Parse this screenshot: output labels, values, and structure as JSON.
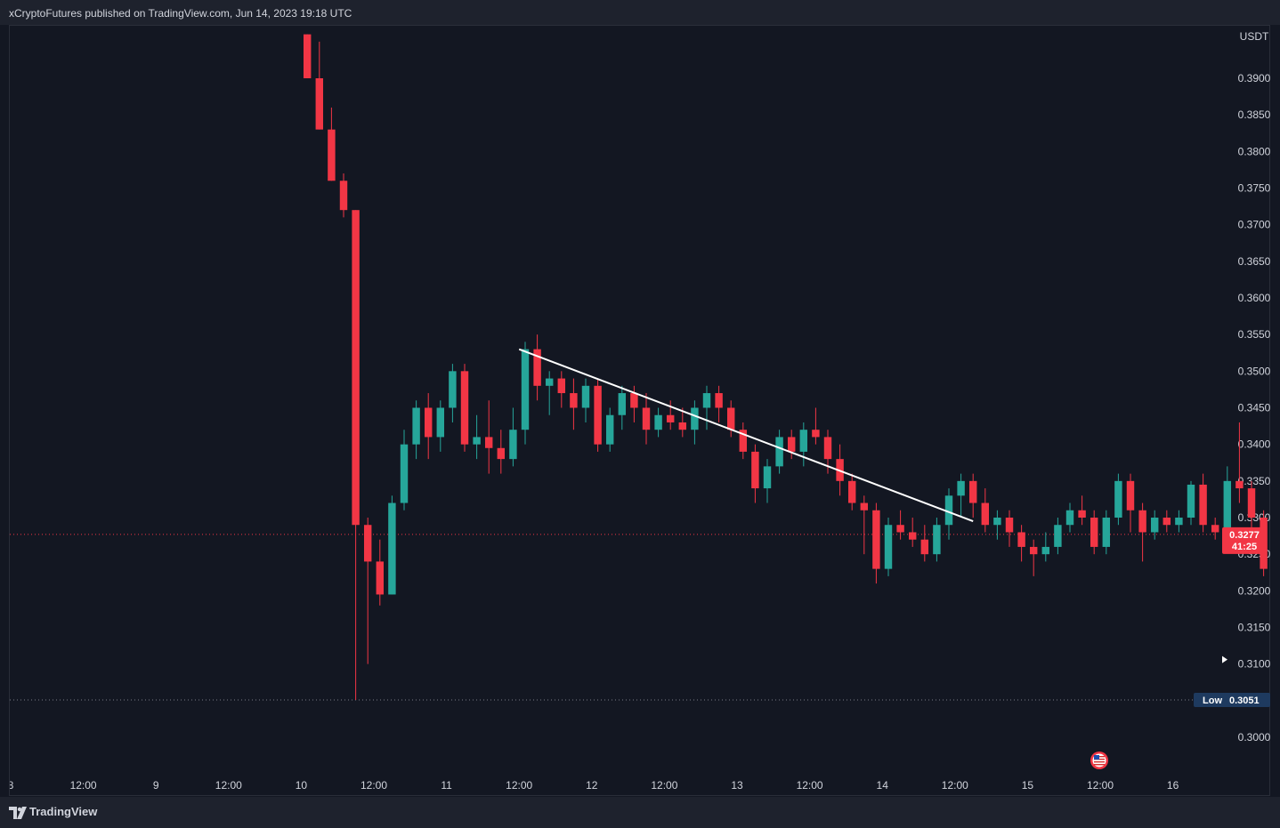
{
  "header": {
    "text": "xCryptoFutures published on TradingView.com, Jun 14, 2023 19:18 UTC"
  },
  "footer": {
    "brand": "TradingView"
  },
  "colors": {
    "background": "#131722",
    "up": "#26a69a",
    "down": "#f23645",
    "text": "#d1d4dc",
    "trendline": "#ffffff",
    "price_tag": "#f23645",
    "low_tag": "#1e3a5f"
  },
  "chart_data": {
    "type": "candlestick",
    "currency": "USDT",
    "y_ticks": [
      "0.3900",
      "0.3850",
      "0.3800",
      "0.3750",
      "0.3700",
      "0.3650",
      "0.3600",
      "0.3550",
      "0.3500",
      "0.3450",
      "0.3400",
      "0.3350",
      "0.3300",
      "0.3250",
      "0.3200",
      "0.3150",
      "0.3100",
      "0.3050",
      "0.3000"
    ],
    "ylim": [
      0.297,
      0.396
    ],
    "x_ticks": [
      "8",
      "12:00",
      "9",
      "12:00",
      "10",
      "12:00",
      "11",
      "12:00",
      "12",
      "12:00",
      "13",
      "12:00",
      "14",
      "12:00",
      "15",
      "12:00",
      "16"
    ],
    "candle_interval": "2h",
    "candles_start": "Jun 10 00:00",
    "candles": [
      [
        0.396,
        0.396,
        0.39,
        0.39
      ],
      [
        0.39,
        0.395,
        0.383,
        0.383
      ],
      [
        0.383,
        0.386,
        0.376,
        0.376
      ],
      [
        0.376,
        0.377,
        0.371,
        0.372
      ],
      [
        0.372,
        0.372,
        0.3051,
        0.329
      ],
      [
        0.329,
        0.33,
        0.31,
        0.324
      ],
      [
        0.324,
        0.327,
        0.318,
        0.3195
      ],
      [
        0.3195,
        0.333,
        0.3195,
        0.332
      ],
      [
        0.332,
        0.342,
        0.331,
        0.34
      ],
      [
        0.34,
        0.346,
        0.338,
        0.345
      ],
      [
        0.345,
        0.347,
        0.338,
        0.341
      ],
      [
        0.341,
        0.346,
        0.339,
        0.345
      ],
      [
        0.345,
        0.351,
        0.343,
        0.35
      ],
      [
        0.35,
        0.351,
        0.339,
        0.34
      ],
      [
        0.34,
        0.344,
        0.338,
        0.341
      ],
      [
        0.341,
        0.346,
        0.336,
        0.3395
      ],
      [
        0.3395,
        0.342,
        0.336,
        0.338
      ],
      [
        0.338,
        0.345,
        0.337,
        0.342
      ],
      [
        0.342,
        0.354,
        0.34,
        0.353
      ],
      [
        0.353,
        0.355,
        0.346,
        0.348
      ],
      [
        0.348,
        0.35,
        0.344,
        0.349
      ],
      [
        0.349,
        0.35,
        0.345,
        0.347
      ],
      [
        0.347,
        0.349,
        0.342,
        0.345
      ],
      [
        0.345,
        0.349,
        0.343,
        0.348
      ],
      [
        0.348,
        0.349,
        0.339,
        0.34
      ],
      [
        0.34,
        0.345,
        0.339,
        0.344
      ],
      [
        0.344,
        0.348,
        0.342,
        0.347
      ],
      [
        0.347,
        0.348,
        0.343,
        0.345
      ],
      [
        0.345,
        0.347,
        0.34,
        0.342
      ],
      [
        0.342,
        0.345,
        0.341,
        0.344
      ],
      [
        0.344,
        0.346,
        0.342,
        0.343
      ],
      [
        0.343,
        0.345,
        0.341,
        0.342
      ],
      [
        0.342,
        0.346,
        0.34,
        0.345
      ],
      [
        0.345,
        0.348,
        0.342,
        0.347
      ],
      [
        0.347,
        0.348,
        0.343,
        0.345
      ],
      [
        0.345,
        0.346,
        0.341,
        0.342
      ],
      [
        0.342,
        0.343,
        0.338,
        0.339
      ],
      [
        0.339,
        0.34,
        0.332,
        0.334
      ],
      [
        0.334,
        0.338,
        0.332,
        0.337
      ],
      [
        0.337,
        0.342,
        0.336,
        0.341
      ],
      [
        0.341,
        0.342,
        0.338,
        0.339
      ],
      [
        0.339,
        0.343,
        0.337,
        0.342
      ],
      [
        0.342,
        0.345,
        0.34,
        0.341
      ],
      [
        0.341,
        0.342,
        0.336,
        0.338
      ],
      [
        0.338,
        0.34,
        0.333,
        0.335
      ],
      [
        0.335,
        0.336,
        0.331,
        0.332
      ],
      [
        0.332,
        0.333,
        0.325,
        0.331
      ],
      [
        0.331,
        0.332,
        0.321,
        0.323
      ],
      [
        0.323,
        0.33,
        0.322,
        0.329
      ],
      [
        0.329,
        0.331,
        0.327,
        0.328
      ],
      [
        0.328,
        0.33,
        0.326,
        0.327
      ],
      [
        0.327,
        0.329,
        0.324,
        0.325
      ],
      [
        0.325,
        0.33,
        0.324,
        0.329
      ],
      [
        0.329,
        0.334,
        0.327,
        0.333
      ],
      [
        0.333,
        0.336,
        0.33,
        0.335
      ],
      [
        0.335,
        0.336,
        0.33,
        0.332
      ],
      [
        0.332,
        0.334,
        0.328,
        0.329
      ],
      [
        0.329,
        0.331,
        0.327,
        0.33
      ],
      [
        0.33,
        0.331,
        0.326,
        0.328
      ],
      [
        0.328,
        0.329,
        0.324,
        0.326
      ],
      [
        0.326,
        0.327,
        0.322,
        0.325
      ],
      [
        0.325,
        0.328,
        0.324,
        0.326
      ],
      [
        0.326,
        0.33,
        0.325,
        0.329
      ],
      [
        0.329,
        0.332,
        0.328,
        0.331
      ],
      [
        0.331,
        0.333,
        0.329,
        0.33
      ],
      [
        0.33,
        0.331,
        0.325,
        0.326
      ],
      [
        0.326,
        0.331,
        0.325,
        0.33
      ],
      [
        0.33,
        0.336,
        0.329,
        0.335
      ],
      [
        0.335,
        0.336,
        0.328,
        0.331
      ],
      [
        0.331,
        0.332,
        0.324,
        0.328
      ],
      [
        0.328,
        0.331,
        0.327,
        0.33
      ],
      [
        0.33,
        0.331,
        0.328,
        0.329
      ],
      [
        0.329,
        0.331,
        0.328,
        0.33
      ],
      [
        0.33,
        0.335,
        0.329,
        0.3345
      ],
      [
        0.3345,
        0.336,
        0.328,
        0.329
      ],
      [
        0.329,
        0.33,
        0.327,
        0.328
      ],
      [
        0.328,
        0.337,
        0.327,
        0.335
      ],
      [
        0.335,
        0.343,
        0.332,
        0.334
      ],
      [
        0.334,
        0.335,
        0.328,
        0.33
      ],
      [
        0.33,
        0.331,
        0.322,
        0.323
      ],
      [
        0.323,
        0.326,
        0.322,
        0.325
      ],
      [
        0.325,
        0.328,
        0.322,
        0.323
      ],
      [
        0.323,
        0.325,
        0.321,
        0.322
      ],
      [
        0.322,
        0.326,
        0.321,
        0.325
      ],
      [
        0.325,
        0.326,
        0.319,
        0.322
      ],
      [
        0.322,
        0.323,
        0.32,
        0.321
      ],
      [
        0.321,
        0.323,
        0.32,
        0.322
      ],
      [
        0.322,
        0.325,
        0.321,
        0.324
      ],
      [
        0.324,
        0.332,
        0.323,
        0.331
      ],
      [
        0.331,
        0.332,
        0.328,
        0.33
      ],
      [
        0.33,
        0.331,
        0.327,
        0.328
      ],
      [
        0.328,
        0.329,
        0.325,
        0.326
      ],
      [
        0.326,
        0.329,
        0.325,
        0.328
      ],
      [
        0.328,
        0.329,
        0.326,
        0.327
      ],
      [
        0.327,
        0.329,
        0.326,
        0.328
      ],
      [
        0.328,
        0.33,
        0.327,
        0.329
      ],
      [
        0.329,
        0.331,
        0.328,
        0.33
      ],
      [
        0.33,
        0.332,
        0.329,
        0.331
      ],
      [
        0.331,
        0.332,
        0.328,
        0.329
      ],
      [
        0.329,
        0.331,
        0.327,
        0.328
      ],
      [
        0.328,
        0.33,
        0.327,
        0.329
      ],
      [
        0.329,
        0.33,
        0.327,
        0.328
      ],
      [
        0.328,
        0.329,
        0.327,
        0.3275
      ],
      [
        0.3275,
        0.329,
        0.323,
        0.3282
      ],
      [
        0.3282,
        0.329,
        0.327,
        0.3277
      ]
    ],
    "trendline": {
      "start": [
        "Jun 11 12:00",
        0.353
      ],
      "end": [
        "Jun 14 15:00",
        0.3295
      ]
    },
    "last_price": {
      "label": "0.3277",
      "countdown": "41:25",
      "value": 0.3277
    },
    "low": {
      "label": "Low",
      "value_label": "0.3051",
      "value": 0.3051
    }
  }
}
